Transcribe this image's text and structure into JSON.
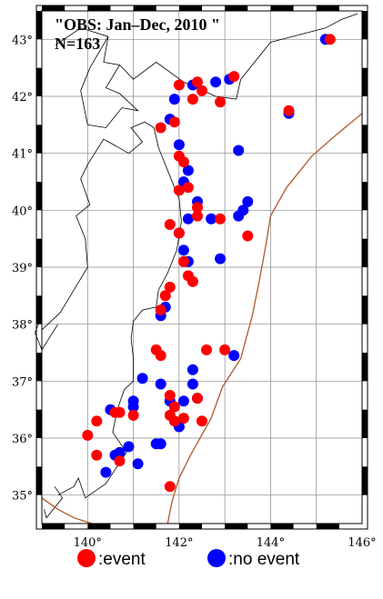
{
  "title_lines": [
    "\"OBS: Jan–Dec, 2010 \"",
    "N=163"
  ],
  "axis": {
    "lon_range": [
      139.0,
      146.0
    ],
    "lat_range": [
      34.5,
      43.5
    ],
    "lon_tick_labels": [
      "140°",
      "142°",
      "144°",
      "146°"
    ],
    "lat_tick_labels": [
      "35°",
      "36°",
      "37°",
      "38°",
      "39°",
      "40°",
      "41°",
      "42°",
      "43°"
    ],
    "grid": true,
    "frame_style": "alternating black-white border"
  },
  "legend": {
    "event_label": ":event",
    "no_event_label": ":no event"
  },
  "colors": {
    "event": "#ff0000",
    "no_event": "#0000ff",
    "coast": "#000000",
    "trench": "#b05a28",
    "grid": "#888888"
  },
  "chart_data": {
    "type": "scatter",
    "title": "\"OBS: Jan–Dec, 2010 \" N=163",
    "xlim": [
      139.0,
      146.0
    ],
    "ylim": [
      34.5,
      43.5
    ],
    "series": [
      {
        "name": ":event",
        "points": [
          [
            145.3,
            43.0
          ],
          [
            142.4,
            42.25
          ],
          [
            143.2,
            42.35
          ],
          [
            142.0,
            42.2
          ],
          [
            142.5,
            42.1
          ],
          [
            142.3,
            41.95
          ],
          [
            142.9,
            41.9
          ],
          [
            144.4,
            41.75
          ],
          [
            141.9,
            41.55
          ],
          [
            141.6,
            41.45
          ],
          [
            142.0,
            40.95
          ],
          [
            142.1,
            40.85
          ],
          [
            142.0,
            40.35
          ],
          [
            142.2,
            40.4
          ],
          [
            142.4,
            40.05
          ],
          [
            142.4,
            39.9
          ],
          [
            142.9,
            39.85
          ],
          [
            141.8,
            39.75
          ],
          [
            142.0,
            39.6
          ],
          [
            143.5,
            39.55
          ],
          [
            142.1,
            39.1
          ],
          [
            142.2,
            38.85
          ],
          [
            142.3,
            38.75
          ],
          [
            141.8,
            38.65
          ],
          [
            141.7,
            38.5
          ],
          [
            141.6,
            38.25
          ],
          [
            141.5,
            37.55
          ],
          [
            141.6,
            37.45
          ],
          [
            142.6,
            37.55
          ],
          [
            143.0,
            37.55
          ],
          [
            141.8,
            36.75
          ],
          [
            142.4,
            36.7
          ],
          [
            141.9,
            36.55
          ],
          [
            141.8,
            36.4
          ],
          [
            142.1,
            36.35
          ],
          [
            142.5,
            36.3
          ],
          [
            141.9,
            36.3
          ],
          [
            140.7,
            36.45
          ],
          [
            140.6,
            36.45
          ],
          [
            141.0,
            36.4
          ],
          [
            140.2,
            36.3
          ],
          [
            140.0,
            36.05
          ],
          [
            140.2,
            35.7
          ],
          [
            140.7,
            35.6
          ],
          [
            141.8,
            35.15
          ]
        ]
      },
      {
        "name": ":no event",
        "points": [
          [
            145.2,
            43.0
          ],
          [
            142.3,
            42.2
          ],
          [
            142.8,
            42.25
          ],
          [
            143.1,
            42.3
          ],
          [
            141.9,
            41.95
          ],
          [
            144.4,
            41.7
          ],
          [
            141.8,
            41.6
          ],
          [
            142.0,
            41.15
          ],
          [
            143.3,
            41.05
          ],
          [
            142.2,
            40.7
          ],
          [
            142.1,
            40.5
          ],
          [
            142.4,
            40.15
          ],
          [
            143.5,
            40.15
          ],
          [
            143.4,
            40.0
          ],
          [
            142.2,
            39.85
          ],
          [
            142.7,
            39.85
          ],
          [
            143.3,
            39.9
          ],
          [
            142.0,
            39.6
          ],
          [
            142.1,
            39.3
          ],
          [
            142.2,
            39.1
          ],
          [
            142.9,
            39.15
          ],
          [
            141.7,
            38.3
          ],
          [
            141.6,
            38.15
          ],
          [
            143.2,
            37.45
          ],
          [
            141.2,
            37.05
          ],
          [
            141.6,
            36.95
          ],
          [
            142.3,
            36.95
          ],
          [
            142.3,
            37.2
          ],
          [
            141.0,
            36.65
          ],
          [
            141.0,
            36.55
          ],
          [
            142.1,
            36.65
          ],
          [
            142.4,
            36.7
          ],
          [
            141.8,
            36.65
          ],
          [
            140.5,
            36.5
          ],
          [
            142.0,
            36.2
          ],
          [
            141.5,
            35.9
          ],
          [
            141.6,
            35.9
          ],
          [
            140.9,
            35.85
          ],
          [
            140.7,
            35.75
          ],
          [
            140.6,
            35.7
          ],
          [
            141.1,
            35.55
          ],
          [
            140.4,
            35.4
          ]
        ]
      }
    ]
  }
}
